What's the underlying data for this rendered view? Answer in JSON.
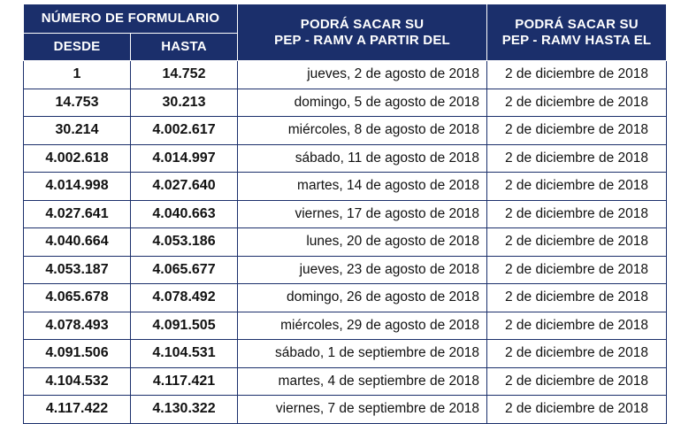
{
  "header": {
    "form_title": "Número de Formulario",
    "desde": "Desde",
    "hasta": "Hasta",
    "from_date_line1": "Podrá sacar su",
    "from_date_line2": "PEP - RAMV a partir del",
    "until_date_line1": "Podrá sacar su",
    "until_date_line2": "PEP - RAMV hasta el"
  },
  "rows": [
    {
      "desde": "1",
      "hasta": "14.752",
      "desde_fecha": "jueves, 2 de agosto de 2018",
      "hasta_fecha": "2 de diciembre de 2018"
    },
    {
      "desde": "14.753",
      "hasta": "30.213",
      "desde_fecha": "domingo, 5 de agosto de 2018",
      "hasta_fecha": "2 de diciembre de 2018"
    },
    {
      "desde": "30.214",
      "hasta": "4.002.617",
      "desde_fecha": "miércoles, 8 de agosto de 2018",
      "hasta_fecha": "2 de diciembre de 2018"
    },
    {
      "desde": "4.002.618",
      "hasta": "4.014.997",
      "desde_fecha": "sábado, 11 de agosto de 2018",
      "hasta_fecha": "2 de diciembre de 2018"
    },
    {
      "desde": "4.014.998",
      "hasta": "4.027.640",
      "desde_fecha": "martes, 14 de agosto de 2018",
      "hasta_fecha": "2 de diciembre de 2018"
    },
    {
      "desde": "4.027.641",
      "hasta": "4.040.663",
      "desde_fecha": "viernes, 17 de agosto de 2018",
      "hasta_fecha": "2 de diciembre de 2018"
    },
    {
      "desde": "4.040.664",
      "hasta": "4.053.186",
      "desde_fecha": "lunes, 20 de agosto de 2018",
      "hasta_fecha": "2 de diciembre de 2018"
    },
    {
      "desde": "4.053.187",
      "hasta": "4.065.677",
      "desde_fecha": "jueves, 23 de agosto de 2018",
      "hasta_fecha": "2 de diciembre de 2018"
    },
    {
      "desde": "4.065.678",
      "hasta": "4.078.492",
      "desde_fecha": "domingo, 26 de agosto de 2018",
      "hasta_fecha": "2 de diciembre de 2018"
    },
    {
      "desde": "4.078.493",
      "hasta": "4.091.505",
      "desde_fecha": "miércoles, 29 de agosto de 2018",
      "hasta_fecha": "2 de diciembre de 2018"
    },
    {
      "desde": "4.091.506",
      "hasta": "4.104.531",
      "desde_fecha": "sábado, 1 de septiembre de 2018",
      "hasta_fecha": "2 de diciembre de 2018"
    },
    {
      "desde": "4.104.532",
      "hasta": "4.117.421",
      "desde_fecha": "martes, 4 de septiembre de 2018",
      "hasta_fecha": "2 de diciembre de 2018"
    },
    {
      "desde": "4.117.422",
      "hasta": "4.130.322",
      "desde_fecha": "viernes, 7 de septiembre de 2018",
      "hasta_fecha": "2 de diciembre de 2018"
    }
  ],
  "colors": {
    "header_bg": "#1b2f6b",
    "header_text": "#ffffff",
    "border": "#1b2f6b"
  }
}
